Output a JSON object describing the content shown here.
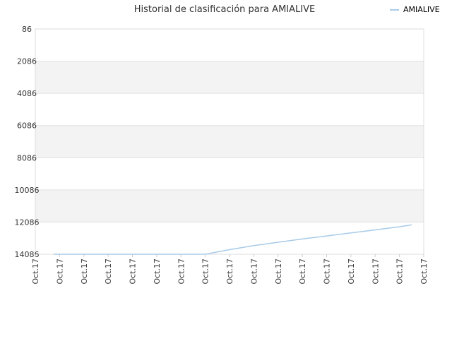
{
  "chart_data": {
    "type": "line",
    "title": "Historial de clasificación para AMIALIVE",
    "xlabel": "",
    "ylabel": "",
    "ylim": [
      86,
      14086
    ],
    "y_reversed": true,
    "y_ticks": [
      86,
      2086,
      4086,
      6086,
      8086,
      10086,
      12086,
      14086
    ],
    "y_tick_labels": [
      "86",
      "2086",
      "4086",
      "6086",
      "8086",
      "10086",
      "12086",
      "14086"
    ],
    "x_tick_labels": [
      "Oct.17",
      "Oct.17",
      "Oct.17",
      "Oct.17",
      "Oct.17",
      "Oct.17",
      "Oct.17",
      "Oct.17",
      "Oct.17",
      "Oct.17",
      "Oct.17",
      "Oct.17",
      "Oct.17",
      "Oct.17",
      "Oct.17",
      "Oct.17",
      "Oct.17"
    ],
    "grid": true,
    "legend_position": "top-right",
    "series": [
      {
        "name": "AMIALIVE",
        "color": "#a8cbe8",
        "x": [
          0.75,
          1,
          2,
          3,
          4,
          5,
          6,
          7,
          8,
          9,
          10,
          11,
          12,
          13,
          14,
          15,
          15.5
        ],
        "y": [
          14086,
          14086,
          14086,
          14086,
          14086,
          14086,
          14086,
          14086,
          13800,
          13550,
          13340,
          13140,
          12950,
          12760,
          12570,
          12380,
          12260
        ]
      }
    ]
  }
}
